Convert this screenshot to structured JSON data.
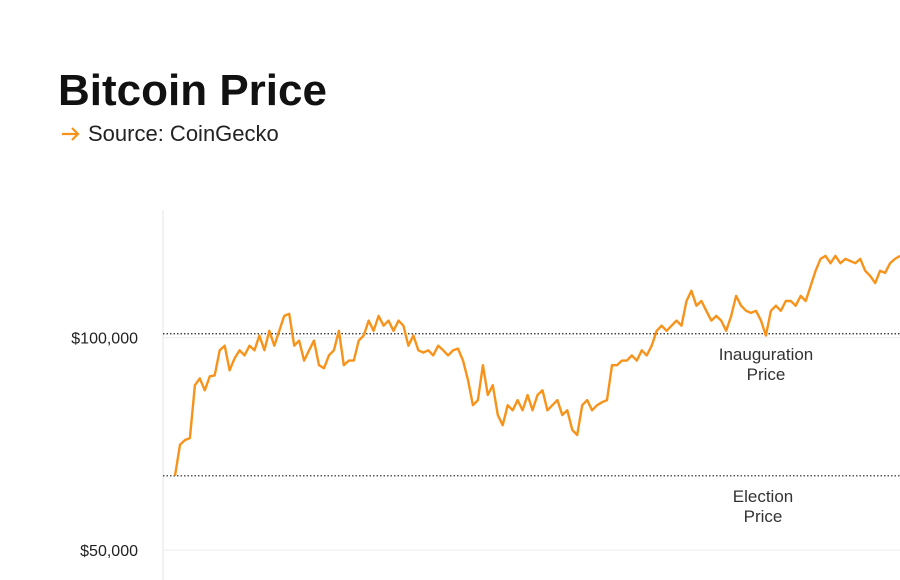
{
  "chart_data": {
    "type": "line",
    "title": "Bitcoin Price",
    "subtitle": "Source: CoinGecko",
    "series": [
      {
        "color": "#f7931a",
        "values": [
          67500,
          74800,
          75900,
          76400,
          88800,
          90400,
          87600,
          90900,
          91100,
          97000,
          98100,
          92300,
          95100,
          97000,
          95800,
          98100,
          97000,
          100500,
          97000,
          101600,
          98100,
          101600,
          105100,
          105600,
          98100,
          99300,
          94600,
          97000,
          99300,
          93500,
          92800,
          95800,
          97000,
          101600,
          93500,
          94600,
          94600,
          99300,
          100500,
          104000,
          101600,
          105100,
          102800,
          104000,
          101600,
          104000,
          102800,
          98100,
          100500,
          97000,
          96500,
          97000,
          95800,
          98100,
          97000,
          95800,
          97000,
          97400,
          94600,
          90000,
          84100,
          85300,
          93500,
          86500,
          88800,
          81800,
          79400,
          84100,
          82900,
          85300,
          82900,
          86500,
          82900,
          86500,
          87600,
          82900,
          84100,
          85300,
          81800,
          82900,
          78300,
          77100,
          84100,
          85300,
          82900,
          84100,
          84800,
          85300,
          93500,
          93500,
          94600,
          94600,
          95800,
          94600,
          97000,
          95800,
          98100,
          101600,
          102800,
          101600,
          102800,
          104000,
          102800,
          108600,
          111000,
          107500,
          108600,
          106300,
          104000,
          105100,
          104000,
          101600,
          105100,
          109800,
          107500,
          106300,
          105800,
          106300,
          104000,
          100500,
          106300,
          107500,
          106300,
          108600,
          108600,
          107500,
          109800,
          108600,
          112100,
          115700,
          118500,
          119200,
          117500,
          119200,
          117500,
          118500,
          118000,
          117500,
          118500,
          115700,
          114500,
          112800,
          115700,
          115200,
          117500,
          118500,
          119200
        ]
      }
    ],
    "ylim": [
      43000,
      130000
    ],
    "yticks": [
      {
        "value": 50000,
        "label": "$50,000"
      },
      {
        "value": 100000,
        "label": "$100,000"
      }
    ],
    "grid": true,
    "reference_lines": [
      {
        "label": "Inauguration Price",
        "value": 100900
      },
      {
        "label": "Election Price",
        "value": 67500
      }
    ]
  }
}
